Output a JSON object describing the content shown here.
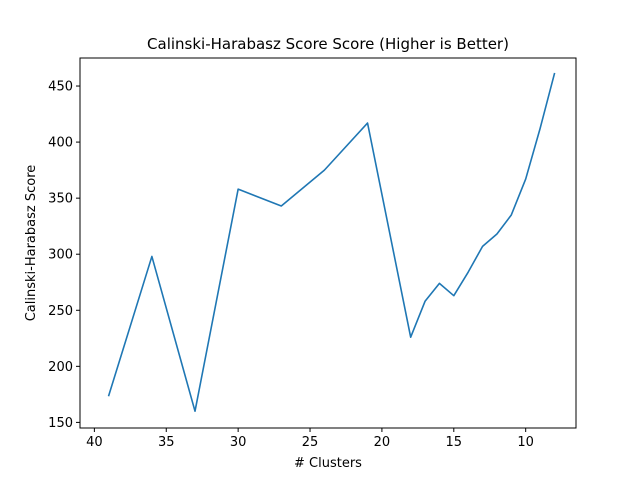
{
  "chart_data": {
    "type": "line",
    "title": "Calinski-Harabasz Score Score (Higher is Better)",
    "xlabel": "# Clusters",
    "ylabel": "Calinski-Harabasz Score",
    "xlim": [
      41,
      6.5
    ],
    "ylim": [
      145,
      475
    ],
    "x_inverted": true,
    "grid": false,
    "line_color": "#1f77b4",
    "x_ticks": [
      40,
      35,
      30,
      25,
      20,
      15,
      10
    ],
    "y_ticks": [
      150,
      200,
      250,
      300,
      350,
      400,
      450
    ],
    "series": [
      {
        "x": [
          39,
          36,
          33,
          30,
          27,
          24,
          21,
          18,
          17,
          16,
          15,
          14,
          13,
          12,
          11,
          10,
          9,
          8
        ],
        "y": [
          174,
          298,
          160,
          358,
          343,
          375,
          417,
          226,
          258,
          274,
          263,
          284,
          307,
          318,
          335,
          367,
          412,
          461
        ]
      }
    ]
  }
}
